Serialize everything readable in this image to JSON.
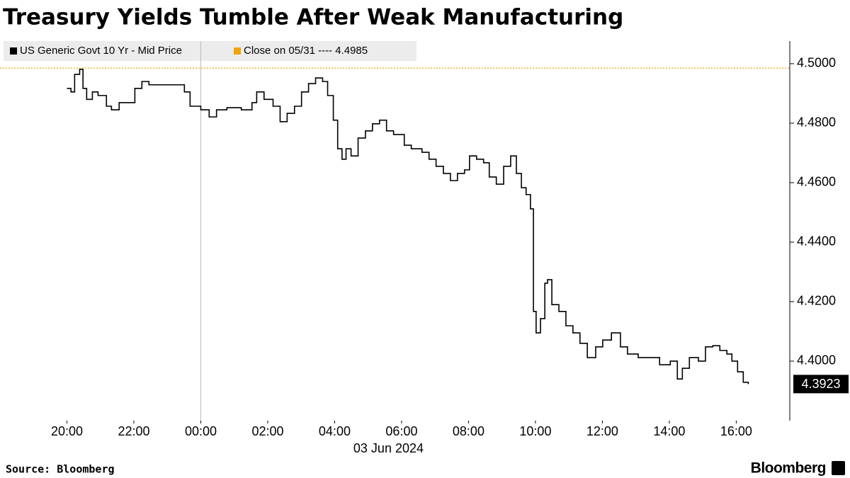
{
  "chart_data": {
    "type": "line",
    "title": "Treasury Yields Tumble After Weak Manufacturing",
    "source": "Source: Bloomberg",
    "brand": "Bloomberg",
    "x_date_label": "03 Jun 2024",
    "x": [
      -4.0,
      -3.88,
      -3.77,
      -3.62,
      -3.52,
      -3.41,
      -3.24,
      -3.07,
      -2.82,
      -2.67,
      -2.44,
      -2.08,
      -1.97,
      -1.76,
      -1.55,
      -1.12,
      -0.49,
      -0.32,
      0,
      0.25,
      0.47,
      0.78,
      1.21,
      1.53,
      1.67,
      1.89,
      2.16,
      2.37,
      2.58,
      2.8,
      3.01,
      3.22,
      3.43,
      3.64,
      3.79,
      3.96,
      4.09,
      4.22,
      4.34,
      4.49,
      4.7,
      4.92,
      5.13,
      5.34,
      5.55,
      5.76,
      6.08,
      6.29,
      6.61,
      6.82,
      7.03,
      7.25,
      7.46,
      7.67,
      7.88,
      8.03,
      8.24,
      8.45,
      8.62,
      8.83,
      9.05,
      9.26,
      9.43,
      9.58,
      9.72,
      9.85,
      9.94,
      10.02,
      10.15,
      10.28,
      10.36,
      10.49,
      10.7,
      10.91,
      11.12,
      11.33,
      11.55,
      11.8,
      12.01,
      12.27,
      12.54,
      12.75,
      13.07,
      13.39,
      13.71,
      14.03,
      14.24,
      14.39,
      14.6,
      14.87,
      15.08,
      15.3,
      15.51,
      15.72,
      15.87,
      16.04,
      16.21,
      16.36
    ],
    "series": [
      {
        "name": "US Generic Govt 10 Yr - Mid Price",
        "color": "#000000",
        "values": [
          4.4917,
          4.4905,
          4.4964,
          4.4981,
          4.4917,
          4.488,
          4.4905,
          4.4893,
          4.4857,
          4.4845,
          4.4869,
          4.4869,
          4.4917,
          4.494,
          4.4929,
          4.4929,
          4.4905,
          4.4857,
          4.4845,
          4.4821,
          4.4845,
          4.4852,
          4.4845,
          4.4869,
          4.4905,
          4.488,
          4.4857,
          4.4805,
          4.4833,
          4.4857,
          4.4905,
          4.4933,
          4.4952,
          4.494,
          4.4893,
          4.481,
          4.4714,
          4.4679,
          4.4714,
          4.469,
          4.475,
          4.4774,
          4.4798,
          4.481,
          4.4774,
          4.4762,
          4.4726,
          4.4714,
          4.4702,
          4.4679,
          4.4655,
          4.4631,
          4.4607,
          4.4631,
          4.4643,
          4.469,
          4.4679,
          4.4667,
          4.4619,
          4.4595,
          4.4655,
          4.469,
          4.4631,
          4.4583,
          4.456,
          4.4512,
          4.4167,
          4.4095,
          4.4143,
          4.4262,
          4.4274,
          4.419,
          4.4167,
          4.4119,
          4.4095,
          4.406,
          4.4012,
          4.4048,
          4.4071,
          4.4095,
          4.4048,
          4.4024,
          4.4012,
          4.4012,
          4.3988,
          4.4,
          4.394,
          4.3976,
          4.4012,
          4.4,
          4.4048,
          4.4052,
          4.4036,
          4.4024,
          4.4,
          4.3964,
          4.3929,
          4.3923
        ],
        "value_labels": [
          null,
          null,
          null,
          null,
          null,
          null,
          null,
          null,
          null,
          null,
          null,
          null,
          null,
          null,
          null,
          null,
          null,
          null,
          null,
          null,
          null,
          null,
          null,
          null,
          null,
          null,
          null,
          null,
          null,
          null,
          null,
          null,
          null,
          null,
          null,
          null,
          null,
          null,
          null,
          null,
          null,
          null,
          null,
          null,
          null,
          null,
          null,
          null,
          null,
          null,
          null,
          null,
          null,
          null,
          null,
          null,
          null,
          null,
          null,
          null,
          null,
          null,
          null,
          null,
          null,
          null,
          null,
          null,
          null,
          null,
          null,
          null,
          null,
          null,
          null,
          null,
          null,
          null,
          null,
          null,
          null,
          null,
          null,
          null,
          null,
          null,
          null,
          null,
          null,
          null,
          null,
          null,
          null,
          null,
          null,
          null,
          null,
          "4.3923"
        ]
      }
    ],
    "reference_line": {
      "label": "Close on 05/31 ---- 4.4985",
      "value": 4.4985,
      "color": "#f0a30a"
    },
    "xlim": [
      -6,
      17.6
    ],
    "xticks": [
      {
        "value": -4,
        "label": "20:00"
      },
      {
        "value": -2,
        "label": "22:00"
      },
      {
        "value": 0,
        "label": "00:00"
      },
      {
        "value": 2,
        "label": "02:00"
      },
      {
        "value": 4,
        "label": "04:00"
      },
      {
        "value": 6,
        "label": "06:00"
      },
      {
        "value": 8,
        "label": "08:00"
      },
      {
        "value": 10,
        "label": "10:00"
      },
      {
        "value": 12,
        "label": "12:00"
      },
      {
        "value": 14,
        "label": "14:00"
      },
      {
        "value": 16,
        "label": "16:00"
      }
    ],
    "ylim": [
      4.38,
      4.5076
    ],
    "yticks": [
      {
        "value": 4.4,
        "label": "4.4000"
      },
      {
        "value": 4.42,
        "label": "4.4200"
      },
      {
        "value": 4.44,
        "label": "4.4400"
      },
      {
        "value": 4.46,
        "label": "4.4600"
      },
      {
        "value": 4.48,
        "label": "4.4800"
      },
      {
        "value": 4.5,
        "label": "4.5000"
      }
    ],
    "day_divider": 0
  }
}
